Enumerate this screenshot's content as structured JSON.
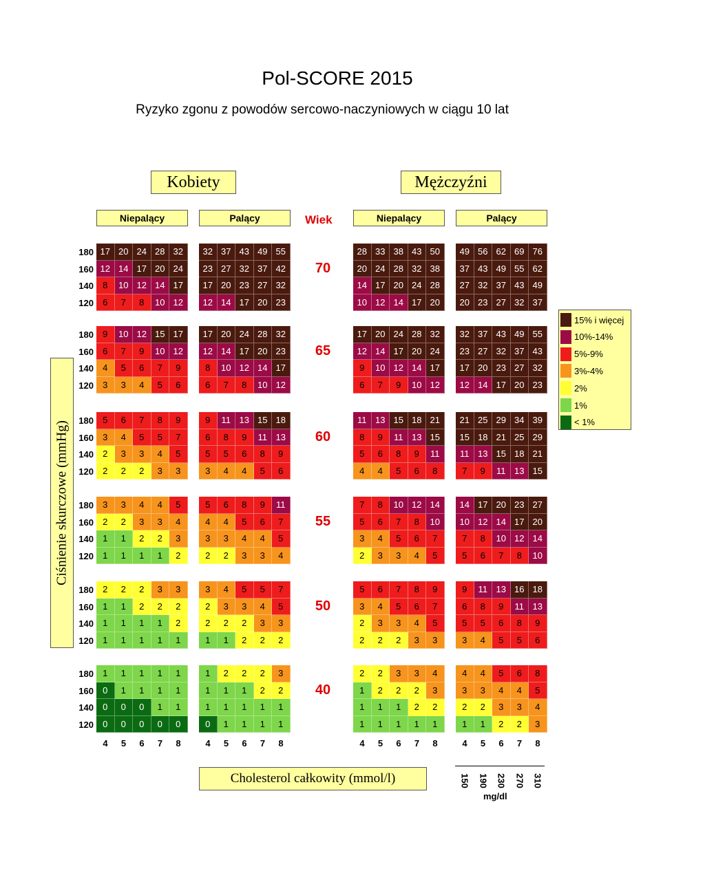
{
  "header": {
    "title": "Pol-SCORE 2015",
    "subtitle": "Ryzyko zgonu z powodów sercowo-naczyniowych w ciągu 10 lat"
  },
  "groups": {
    "women": "Kobiety",
    "men": "Mężczyźni",
    "nonsmoker": "Niepalący",
    "smoker": "Palący",
    "age_header": "Wiek"
  },
  "axes": {
    "y_label": "Ciśnienie skurczowe (mmHg)",
    "x_label": "Cholesterol całkowity (mmol/l)",
    "bp_levels": [
      "180",
      "160",
      "140",
      "120"
    ],
    "chol_mmol": [
      "4",
      "5",
      "6",
      "7",
      "8"
    ],
    "chol_mgdl": [
      "150",
      "190",
      "230",
      "270",
      "310"
    ],
    "mgdl_unit": "mg/dl"
  },
  "legend": [
    {
      "label": "15% i więcej",
      "color": "#4a1a0e"
    },
    {
      "label": "10%-14%",
      "color": "#9c0b46"
    },
    {
      "label": "5%-9%",
      "color": "#ee1c1c"
    },
    {
      "label": "3%-4%",
      "color": "#f7941d"
    },
    {
      "label": "2%",
      "color": "#ffff33"
    },
    {
      "label": "1%",
      "color": "#7ed64a"
    },
    {
      "label": "< 1%",
      "color": "#0b6b12"
    }
  ],
  "chart_data": {
    "type": "heatmap",
    "ages": [
      {
        "age": "70",
        "women_nonsmoker": [
          [
            17,
            20,
            24,
            28,
            32
          ],
          [
            12,
            14,
            17,
            20,
            24
          ],
          [
            8,
            10,
            12,
            14,
            17
          ],
          [
            6,
            7,
            8,
            10,
            12
          ]
        ],
        "women_smoker": [
          [
            32,
            37,
            43,
            49,
            55
          ],
          [
            23,
            27,
            32,
            37,
            42
          ],
          [
            17,
            20,
            23,
            27,
            32
          ],
          [
            12,
            14,
            17,
            20,
            23
          ]
        ],
        "men_nonsmoker": [
          [
            28,
            33,
            38,
            43,
            50
          ],
          [
            20,
            24,
            28,
            32,
            38
          ],
          [
            14,
            17,
            20,
            24,
            28
          ],
          [
            10,
            12,
            14,
            17,
            20
          ]
        ],
        "men_smoker": [
          [
            49,
            56,
            62,
            69,
            76
          ],
          [
            37,
            43,
            49,
            55,
            62
          ],
          [
            27,
            32,
            37,
            43,
            49
          ],
          [
            20,
            23,
            27,
            32,
            37
          ]
        ]
      },
      {
        "age": "65",
        "women_nonsmoker": [
          [
            9,
            10,
            12,
            15,
            17
          ],
          [
            6,
            7,
            9,
            10,
            12
          ],
          [
            4,
            5,
            6,
            7,
            9
          ],
          [
            3,
            3,
            4,
            5,
            6
          ]
        ],
        "women_smoker": [
          [
            17,
            20,
            24,
            28,
            32
          ],
          [
            12,
            14,
            17,
            20,
            23
          ],
          [
            8,
            10,
            12,
            14,
            17
          ],
          [
            6,
            7,
            8,
            10,
            12
          ]
        ],
        "men_nonsmoker": [
          [
            17,
            20,
            24,
            28,
            32
          ],
          [
            12,
            14,
            17,
            20,
            24
          ],
          [
            9,
            10,
            12,
            14,
            17
          ],
          [
            6,
            7,
            9,
            10,
            12
          ]
        ],
        "men_smoker": [
          [
            32,
            37,
            43,
            49,
            55
          ],
          [
            23,
            27,
            32,
            37,
            43
          ],
          [
            17,
            20,
            23,
            27,
            32
          ],
          [
            12,
            14,
            17,
            20,
            23
          ]
        ]
      },
      {
        "age": "60",
        "women_nonsmoker": [
          [
            5,
            6,
            7,
            8,
            9
          ],
          [
            3,
            4,
            5,
            5,
            7
          ],
          [
            2,
            3,
            3,
            4,
            5
          ],
          [
            2,
            2,
            2,
            3,
            3
          ]
        ],
        "women_smoker": [
          [
            9,
            11,
            13,
            15,
            18
          ],
          [
            6,
            8,
            9,
            11,
            13
          ],
          [
            5,
            5,
            6,
            8,
            9
          ],
          [
            3,
            4,
            4,
            5,
            6
          ]
        ],
        "men_nonsmoker": [
          [
            11,
            13,
            15,
            18,
            21
          ],
          [
            8,
            9,
            11,
            13,
            15
          ],
          [
            5,
            6,
            8,
            9,
            11
          ],
          [
            4,
            4,
            5,
            6,
            8
          ]
        ],
        "men_smoker": [
          [
            21,
            25,
            29,
            34,
            39
          ],
          [
            15,
            18,
            21,
            25,
            29
          ],
          [
            11,
            13,
            15,
            18,
            21
          ],
          [
            7,
            9,
            11,
            13,
            15
          ]
        ]
      },
      {
        "age": "55",
        "women_nonsmoker": [
          [
            3,
            3,
            4,
            4,
            5
          ],
          [
            2,
            2,
            3,
            3,
            4
          ],
          [
            1,
            1,
            2,
            2,
            3
          ],
          [
            1,
            1,
            1,
            1,
            2
          ]
        ],
        "women_smoker": [
          [
            5,
            6,
            8,
            9,
            11
          ],
          [
            4,
            4,
            5,
            6,
            7
          ],
          [
            3,
            3,
            4,
            4,
            5
          ],
          [
            2,
            2,
            3,
            3,
            4
          ]
        ],
        "men_nonsmoker": [
          [
            7,
            8,
            10,
            12,
            14
          ],
          [
            5,
            6,
            7,
            8,
            10
          ],
          [
            3,
            4,
            5,
            6,
            7
          ],
          [
            2,
            3,
            3,
            4,
            5
          ]
        ],
        "men_smoker": [
          [
            14,
            17,
            20,
            23,
            27
          ],
          [
            10,
            12,
            14,
            17,
            20
          ],
          [
            7,
            8,
            10,
            12,
            14
          ],
          [
            5,
            6,
            7,
            8,
            10
          ]
        ]
      },
      {
        "age": "50",
        "women_nonsmoker": [
          [
            2,
            2,
            2,
            3,
            3
          ],
          [
            1,
            1,
            2,
            2,
            2
          ],
          [
            1,
            1,
            1,
            1,
            2
          ],
          [
            1,
            1,
            1,
            1,
            1
          ]
        ],
        "women_smoker": [
          [
            3,
            4,
            5,
            5,
            7
          ],
          [
            2,
            3,
            3,
            4,
            5
          ],
          [
            2,
            2,
            2,
            3,
            3
          ],
          [
            1,
            1,
            2,
            2,
            2
          ]
        ],
        "men_nonsmoker": [
          [
            5,
            6,
            7,
            8,
            9
          ],
          [
            3,
            4,
            5,
            6,
            7
          ],
          [
            2,
            3,
            3,
            4,
            5
          ],
          [
            2,
            2,
            2,
            3,
            3
          ]
        ],
        "men_smoker": [
          [
            9,
            11,
            13,
            16,
            18
          ],
          [
            6,
            8,
            9,
            11,
            13
          ],
          [
            5,
            5,
            6,
            8,
            9
          ],
          [
            3,
            4,
            5,
            5,
            6
          ]
        ]
      },
      {
        "age": "40",
        "women_nonsmoker": [
          [
            1,
            1,
            1,
            1,
            1
          ],
          [
            0,
            1,
            1,
            1,
            1
          ],
          [
            0,
            0,
            0,
            1,
            1
          ],
          [
            0,
            0,
            0,
            0,
            0
          ]
        ],
        "women_smoker": [
          [
            1,
            2,
            2,
            2,
            3
          ],
          [
            1,
            1,
            1,
            2,
            2
          ],
          [
            1,
            1,
            1,
            1,
            1
          ],
          [
            0,
            1,
            1,
            1,
            1
          ]
        ],
        "men_nonsmoker": [
          [
            2,
            2,
            3,
            3,
            4
          ],
          [
            1,
            2,
            2,
            2,
            3
          ],
          [
            1,
            1,
            1,
            2,
            2
          ],
          [
            1,
            1,
            1,
            1,
            1
          ]
        ],
        "men_smoker": [
          [
            4,
            4,
            5,
            6,
            8
          ],
          [
            3,
            3,
            4,
            4,
            5
          ],
          [
            2,
            2,
            3,
            3,
            4
          ],
          [
            1,
            1,
            2,
            2,
            3
          ]
        ]
      }
    ]
  }
}
